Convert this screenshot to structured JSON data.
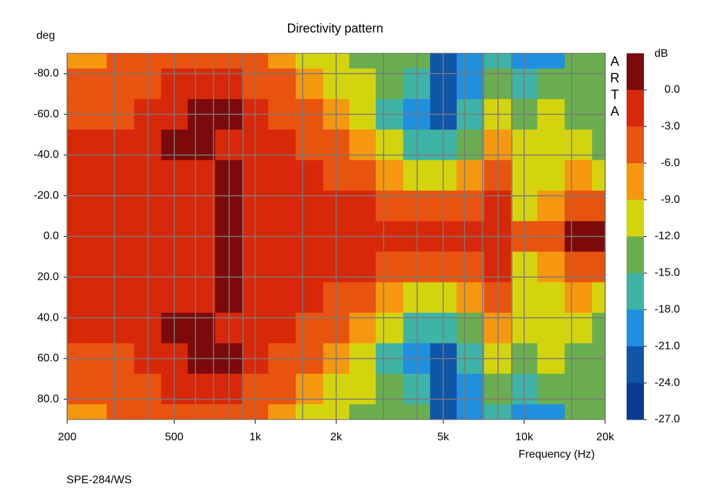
{
  "chart_data": {
    "type": "heatmap",
    "title": "Directivity pattern",
    "ylabel": "deg",
    "xlabel": "Frequency (Hz)",
    "footnote": "SPE-284/WS",
    "watermark": [
      "A",
      "R",
      "T",
      "A"
    ],
    "x_log": true,
    "xlim": [
      200,
      20000
    ],
    "xticks": [
      200,
      500,
      {
        "value": 1000,
        "label": "1k"
      },
      {
        "value": 2000,
        "label": "2k"
      },
      {
        "value": 5000,
        "label": "5k"
      },
      {
        "value": 10000,
        "label": "10k"
      },
      {
        "value": 20000,
        "label": "20k"
      }
    ],
    "x_minor_grid": [
      300,
      400,
      600,
      700,
      800,
      900,
      1500,
      3000,
      4000,
      6000,
      7000,
      8000,
      9000,
      15000
    ],
    "ylim": [
      -90,
      90
    ],
    "y_reversed": true,
    "yticks": [
      {
        "value": -80,
        "label": "-80.0"
      },
      {
        "value": -60,
        "label": "-60.0"
      },
      {
        "value": -40,
        "label": "-40.0"
      },
      {
        "value": -20,
        "label": "-20.0"
      },
      {
        "value": 0,
        "label": "0.0"
      },
      {
        "value": 20,
        "label": "20.0"
      },
      {
        "value": 40,
        "label": "40.0"
      },
      {
        "value": 60,
        "label": "60.0"
      },
      {
        "value": 80,
        "label": "80.0"
      }
    ],
    "grid": true,
    "x": [
      200,
      250,
      315,
      400,
      500,
      630,
      800,
      1000,
      1250,
      1600,
      2000,
      2500,
      3150,
      4000,
      5000,
      6300,
      8000,
      10000,
      12500,
      16000,
      20000
    ],
    "y": [
      -90,
      -75,
      -60,
      -45,
      -30,
      -15,
      0,
      15,
      30,
      45,
      60,
      75,
      90
    ],
    "z": [
      [
        -7,
        -7,
        -5,
        -4,
        -4,
        -3.5,
        -3.5,
        -5,
        -7,
        -10,
        -11,
        -13,
        -13,
        -14,
        -22,
        -19,
        -16,
        -19,
        -18,
        -14,
        -14
      ],
      [
        -5,
        -5,
        -4.5,
        -3.5,
        -2,
        -2,
        -2,
        -3.5,
        -5,
        -7,
        -9.5,
        -11,
        -14,
        -16,
        -23,
        -20,
        -14,
        -16,
        -13,
        -14,
        -13
      ],
      [
        -3,
        -4,
        -3.5,
        -2,
        -1,
        1,
        0.5,
        -2.5,
        -3.5,
        -5,
        -7,
        -10,
        -16,
        -19,
        -22,
        -17,
        -10,
        -13,
        -11,
        -13,
        -13
      ],
      [
        -2.5,
        -2,
        -2,
        -1,
        1,
        0.5,
        -1,
        -2,
        -2.5,
        -3.5,
        -5,
        -7,
        -11,
        -16,
        -17,
        -13,
        -8,
        -11,
        -11,
        -11,
        -13
      ],
      [
        -2,
        -2,
        -2,
        -0.5,
        -0.5,
        -1,
        0.5,
        -1.5,
        -2,
        -2,
        -3,
        -4.5,
        -7,
        -9,
        -10,
        -8,
        -4,
        -11,
        -10,
        -8,
        -9
      ],
      [
        -2,
        -1.5,
        -1.5,
        -1,
        -1,
        -0.5,
        1,
        -1,
        -1.5,
        -1.5,
        -2,
        -2.5,
        -3,
        -3.5,
        -4.5,
        -5,
        -1,
        -9,
        -6,
        -4,
        -5
      ],
      [
        -2,
        -1.5,
        -1.5,
        -1,
        -1,
        -0.5,
        0.5,
        -1,
        -1,
        -1,
        -1.5,
        -2,
        -2,
        -2,
        -2,
        -2.5,
        -2.5,
        -3,
        -3,
        0.5,
        0.5
      ],
      [
        -2,
        -1.5,
        -1.5,
        -1,
        -1,
        -0.5,
        1,
        -1,
        -1.5,
        -1.5,
        -2,
        -2.5,
        -3,
        -3.5,
        -4.5,
        -5,
        -1,
        -9,
        -6,
        -4,
        -5
      ],
      [
        -2,
        -2,
        -2,
        -0.5,
        -0.5,
        -1,
        0.5,
        -1.5,
        -2,
        -2,
        -3,
        -4.5,
        -7,
        -9,
        -10,
        -8,
        -4,
        -11,
        -10,
        -8,
        -9
      ],
      [
        -2.5,
        -2,
        -2,
        -1,
        1,
        0.5,
        -1,
        -2,
        -2.5,
        -3.5,
        -5,
        -7,
        -11,
        -16,
        -17,
        -13,
        -8,
        -11,
        -11,
        -11,
        -13
      ],
      [
        -3,
        -4,
        -3.5,
        -2,
        -1,
        1,
        0.5,
        -2.5,
        -3.5,
        -5,
        -7,
        -10,
        -16,
        -19,
        -22,
        -17,
        -10,
        -13,
        -11,
        -13,
        -13
      ],
      [
        -5,
        -5,
        -4.5,
        -3.5,
        -2,
        -2,
        -2,
        -3.5,
        -5,
        -7,
        -9.5,
        -11,
        -14,
        -16,
        -23,
        -20,
        -14,
        -16,
        -13,
        -14,
        -13
      ],
      [
        -7,
        -7,
        -5,
        -4,
        -4,
        -3.5,
        -3.5,
        -5,
        -7,
        -10,
        -11,
        -13,
        -13,
        -14,
        -22,
        -19,
        -16,
        -19,
        -18,
        -14,
        -14
      ]
    ],
    "colorbar": {
      "label": "dB",
      "lim": [
        3,
        -27
      ],
      "colors": [
        "#7d0a0a",
        "#d8280a",
        "#e8530f",
        "#f5970f",
        "#d4d40e",
        "#6aae4f",
        "#3fb3a6",
        "#1f8fe0",
        "#0f55a8",
        "#0a3c96"
      ],
      "ticks": [
        {
          "value": 0,
          "label": "0.0"
        },
        {
          "value": -3,
          "label": "-3.0"
        },
        {
          "value": -6,
          "label": "-6.0"
        },
        {
          "value": -9,
          "label": "-9.0"
        },
        {
          "value": -12,
          "label": "-12.0"
        },
        {
          "value": -15,
          "label": "-15.0"
        },
        {
          "value": -18,
          "label": "-18.0"
        },
        {
          "value": -21,
          "label": "-21.0"
        },
        {
          "value": -24,
          "label": "-24.0"
        },
        {
          "value": -27,
          "label": "-27.0"
        }
      ]
    }
  }
}
